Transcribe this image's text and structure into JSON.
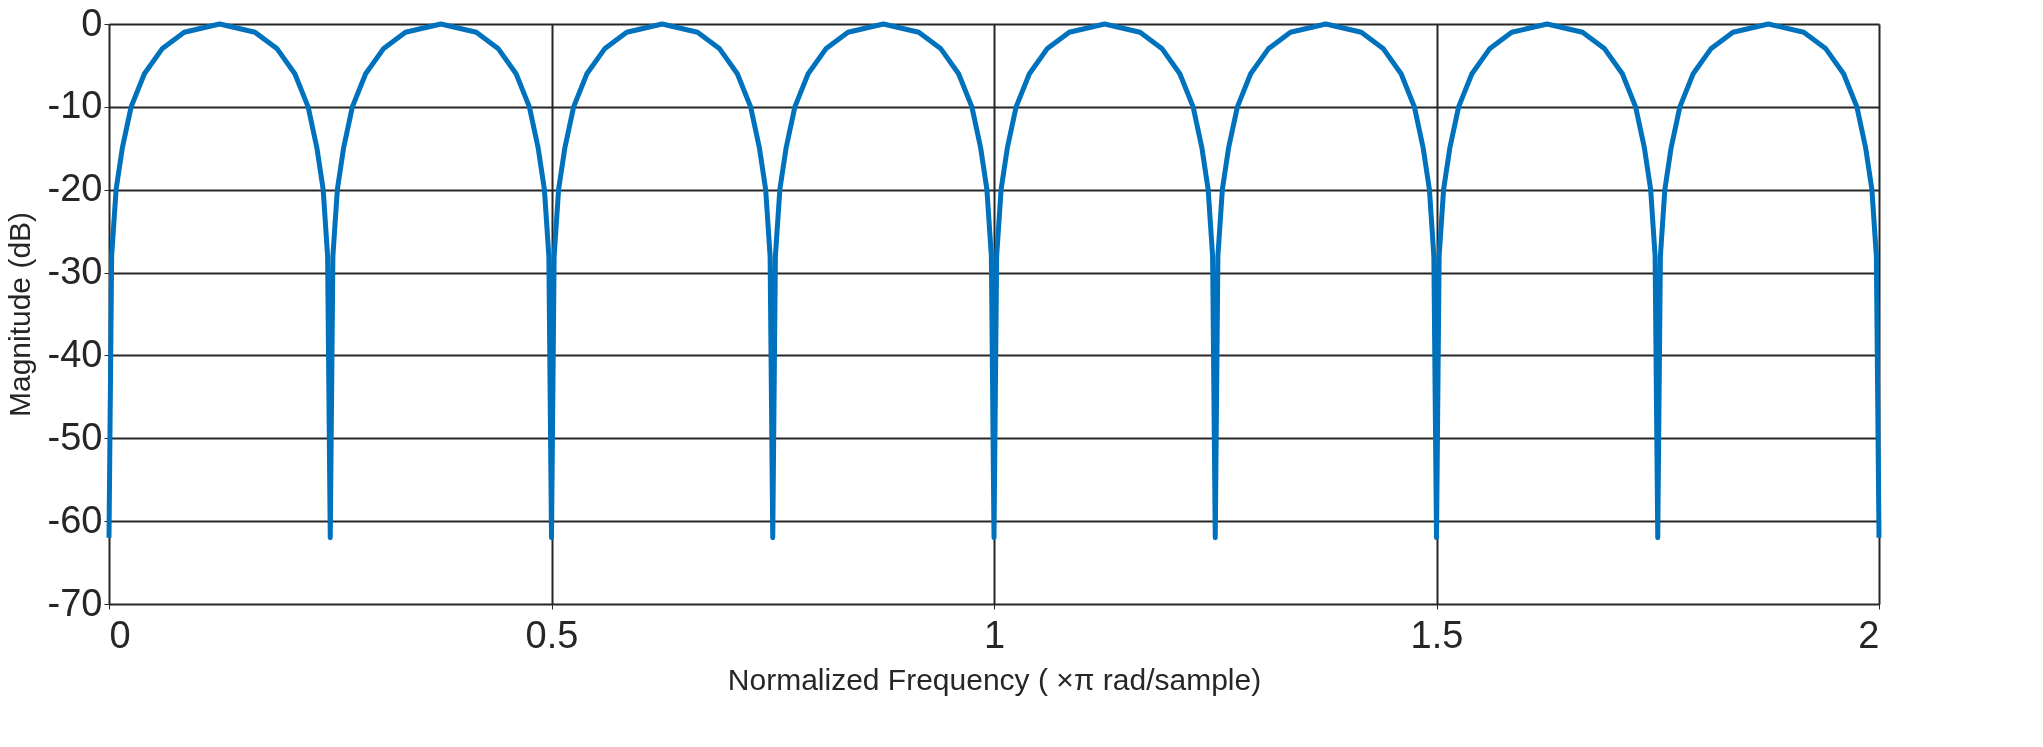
{
  "chart_data": {
    "type": "line",
    "xlabel": "Normalized Frequency (   ×π rad/sample)",
    "ylabel": "Magnitude (dB)",
    "xlim": [
      0,
      2
    ],
    "xticks": [
      0,
      0.5,
      1,
      1.5,
      2
    ],
    "ylim": [
      -70,
      0
    ],
    "yticks": [
      -70,
      -60,
      -50,
      -40,
      -30,
      -20,
      -10,
      0
    ],
    "grid": true,
    "legend": false,
    "marker": "none",
    "line_style": "solid",
    "x": [
      0,
      0.003,
      0.008,
      0.015,
      0.025,
      0.04,
      0.06,
      0.085,
      0.125,
      0.165,
      0.19,
      0.21,
      0.225,
      0.235,
      0.242,
      0.247,
      0.25,
      0.253,
      0.258,
      0.265,
      0.275,
      0.29,
      0.31,
      0.335,
      0.375,
      0.415,
      0.44,
      0.46,
      0.475,
      0.485,
      0.492,
      0.497,
      0.5,
      0.503,
      0.508,
      0.515,
      0.525,
      0.54,
      0.56,
      0.585,
      0.625,
      0.665,
      0.69,
      0.71,
      0.725,
      0.735,
      0.742,
      0.747,
      0.75,
      0.753,
      0.758,
      0.765,
      0.775,
      0.79,
      0.81,
      0.835,
      0.875,
      0.915,
      0.94,
      0.96,
      0.975,
      0.985,
      0.992,
      0.997,
      1,
      1.003,
      1.008,
      1.015,
      1.025,
      1.04,
      1.06,
      1.085,
      1.125,
      1.165,
      1.19,
      1.21,
      1.225,
      1.235,
      1.242,
      1.247,
      1.25,
      1.253,
      1.258,
      1.265,
      1.275,
      1.29,
      1.31,
      1.335,
      1.375,
      1.415,
      1.44,
      1.46,
      1.475,
      1.485,
      1.492,
      1.497,
      1.5,
      1.503,
      1.508,
      1.515,
      1.525,
      1.54,
      1.56,
      1.585,
      1.625,
      1.665,
      1.69,
      1.71,
      1.725,
      1.735,
      1.742,
      1.747,
      1.75,
      1.753,
      1.758,
      1.765,
      1.775,
      1.79,
      1.81,
      1.835,
      1.875,
      1.915,
      1.94,
      1.96,
      1.975,
      1.985,
      1.992,
      1.997,
      2
    ],
    "series": [
      {
        "color": "#0072bd",
        "values": [
          -62,
          -28,
          -20,
          -15,
          -10,
          -6,
          -3,
          -1,
          0,
          -1,
          -3,
          -6,
          -10,
          -15,
          -20,
          -28,
          -62,
          -28,
          -20,
          -15,
          -10,
          -6,
          -3,
          -1,
          0,
          -1,
          -3,
          -6,
          -10,
          -15,
          -20,
          -28,
          -62,
          -28,
          -20,
          -15,
          -10,
          -6,
          -3,
          -1,
          0,
          -1,
          -3,
          -6,
          -10,
          -15,
          -20,
          -28,
          -62,
          -28,
          -20,
          -15,
          -10,
          -6,
          -3,
          -1,
          0,
          -1,
          -3,
          -6,
          -10,
          -15,
          -20,
          -28,
          -62,
          -28,
          -20,
          -15,
          -10,
          -6,
          -3,
          -1,
          0,
          -1,
          -3,
          -6,
          -10,
          -15,
          -20,
          -28,
          -62,
          -28,
          -20,
          -15,
          -10,
          -6,
          -3,
          -1,
          0,
          -1,
          -3,
          -6,
          -10,
          -15,
          -20,
          -28,
          -62,
          -28,
          -20,
          -15,
          -10,
          -6,
          -3,
          -1,
          0,
          -1,
          -3,
          -6,
          -10,
          -15,
          -20,
          -28,
          -62,
          -28,
          -20,
          -15,
          -10,
          -6,
          -3,
          -1,
          0,
          -1,
          -3,
          -6,
          -10,
          -15,
          -20,
          -28,
          -62
        ]
      }
    ]
  }
}
